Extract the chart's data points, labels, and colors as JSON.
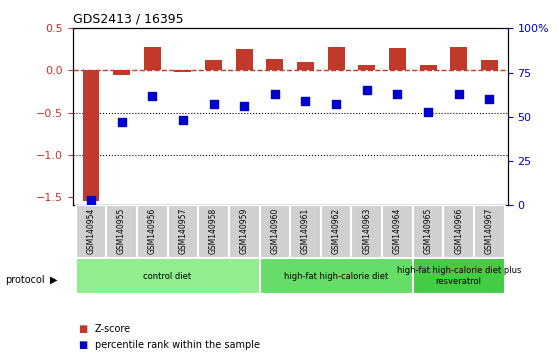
{
  "title": "GDS2413 / 16395",
  "samples": [
    "GSM140954",
    "GSM140955",
    "GSM140956",
    "GSM140957",
    "GSM140958",
    "GSM140959",
    "GSM140960",
    "GSM140961",
    "GSM140962",
    "GSM140963",
    "GSM140964",
    "GSM140965",
    "GSM140966",
    "GSM140967"
  ],
  "zscore": [
    -1.55,
    -0.05,
    0.28,
    -0.02,
    0.12,
    0.25,
    0.14,
    0.1,
    0.28,
    0.06,
    0.27,
    0.07,
    0.28,
    0.13
  ],
  "percentile": [
    3,
    47,
    62,
    48,
    57,
    56,
    63,
    59,
    57,
    65,
    63,
    53,
    63,
    60
  ],
  "zscore_color": "#c0392b",
  "percentile_color": "#0000cc",
  "groups": [
    {
      "label": "control diet",
      "start": 0,
      "end": 6,
      "color": "#90EE90"
    },
    {
      "label": "high-fat high-calorie diet",
      "start": 6,
      "end": 11,
      "color": "#66DD66"
    },
    {
      "label": "high-fat high-calorie diet plus\nresveratrol",
      "start": 11,
      "end": 14,
      "color": "#44CC44"
    }
  ],
  "ylim_left": [
    -1.6,
    0.5
  ],
  "ylim_right": [
    0,
    100
  ],
  "yticks_left": [
    0.5,
    0,
    -0.5,
    -1.0,
    -1.5
  ],
  "yticks_right": [
    100,
    75,
    50,
    25,
    0
  ]
}
